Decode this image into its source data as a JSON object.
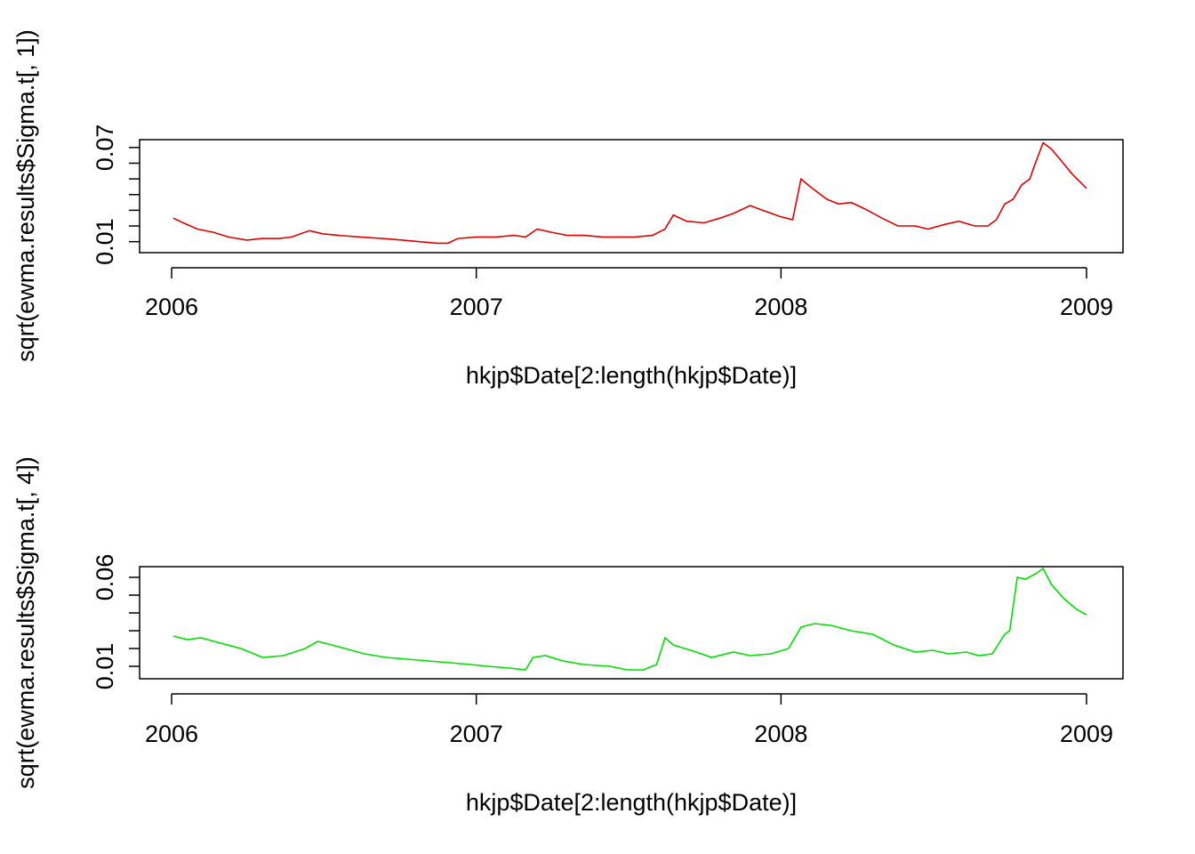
{
  "chart_data": [
    {
      "type": "line",
      "title": "",
      "xlabel": "hkjp$Date[2:length(hkjp$Date)]",
      "ylabel": "sqrt(ewma.results$Sigma.t[, 1])",
      "xlim": [
        "2006-01-01",
        "2009-01-01"
      ],
      "ylim": [
        0.003,
        0.075
      ],
      "x_ticks": [
        "2006",
        "2007",
        "2008",
        "2009"
      ],
      "y_ticks": [
        0.01,
        0.02,
        0.03,
        0.04,
        0.05,
        0.06,
        0.07
      ],
      "y_tick_labels": [
        "0.01",
        "",
        "",
        "",
        "",
        "",
        "0.07"
      ],
      "grid": false,
      "color": "#e00000",
      "series": [
        {
          "x": [
            "2006-01-03",
            "2006-01-15",
            "2006-02-01",
            "2006-02-20",
            "2006-03-10",
            "2006-04-01",
            "2006-04-20",
            "2006-05-10",
            "2006-05-25",
            "2006-06-15",
            "2006-07-01",
            "2006-07-20",
            "2006-08-15",
            "2006-09-10",
            "2006-10-05",
            "2006-10-25",
            "2006-11-15",
            "2006-11-28",
            "2006-12-10",
            "2007-01-01",
            "2007-01-25",
            "2007-02-15",
            "2007-03-01",
            "2007-03-15",
            "2007-04-01",
            "2007-04-20",
            "2007-05-10",
            "2007-06-01",
            "2007-06-20",
            "2007-07-10",
            "2007-07-31",
            "2007-08-15",
            "2007-08-25",
            "2007-09-10",
            "2007-10-01",
            "2007-10-20",
            "2007-11-05",
            "2007-11-25",
            "2007-12-10",
            "2007-12-31",
            "2008-01-15",
            "2008-01-25",
            "2008-02-05",
            "2008-02-25",
            "2008-03-10",
            "2008-03-25",
            "2008-04-10",
            "2008-05-01",
            "2008-05-20",
            "2008-06-10",
            "2008-06-25",
            "2008-07-15",
            "2008-08-01",
            "2008-08-20",
            "2008-09-05",
            "2008-09-15",
            "2008-09-25",
            "2008-10-05",
            "2008-10-15",
            "2008-10-25",
            "2008-10-31",
            "2008-11-10",
            "2008-11-20",
            "2008-12-01",
            "2008-12-15",
            "2009-01-01"
          ],
          "values": [
            0.025,
            0.022,
            0.018,
            0.016,
            0.013,
            0.011,
            0.012,
            0.012,
            0.013,
            0.017,
            0.015,
            0.014,
            0.013,
            0.012,
            0.011,
            0.01,
            0.009,
            0.009,
            0.012,
            0.013,
            0.013,
            0.014,
            0.013,
            0.018,
            0.016,
            0.014,
            0.014,
            0.013,
            0.013,
            0.013,
            0.014,
            0.018,
            0.027,
            0.023,
            0.022,
            0.025,
            0.028,
            0.033,
            0.03,
            0.026,
            0.024,
            0.05,
            0.045,
            0.037,
            0.034,
            0.035,
            0.031,
            0.025,
            0.02,
            0.02,
            0.018,
            0.021,
            0.023,
            0.02,
            0.02,
            0.024,
            0.034,
            0.037,
            0.046,
            0.05,
            0.059,
            0.073,
            0.069,
            0.062,
            0.053,
            0.044
          ]
        }
      ]
    },
    {
      "type": "line",
      "title": "",
      "xlabel": "hkjp$Date[2:length(hkjp$Date)]",
      "ylabel": "sqrt(ewma.results$Sigma.t[, 4])",
      "xlim": [
        "2006-01-01",
        "2009-01-01"
      ],
      "ylim": [
        0.003,
        0.066
      ],
      "x_ticks": [
        "2006",
        "2007",
        "2008",
        "2009"
      ],
      "y_ticks": [
        0.01,
        0.02,
        0.03,
        0.04,
        0.05,
        0.06
      ],
      "y_tick_labels": [
        "0.01",
        "",
        "",
        "",
        "",
        "0.06"
      ],
      "grid": false,
      "color": "#00e000",
      "series": [
        {
          "x": [
            "2006-01-03",
            "2006-01-20",
            "2006-02-05",
            "2006-03-01",
            "2006-03-25",
            "2006-04-20",
            "2006-05-15",
            "2006-06-10",
            "2006-06-25",
            "2006-07-20",
            "2006-08-20",
            "2006-09-15",
            "2006-10-10",
            "2006-11-05",
            "2006-12-01",
            "2006-12-25",
            "2007-01-15",
            "2007-02-10",
            "2007-03-01",
            "2007-03-10",
            "2007-03-25",
            "2007-04-15",
            "2007-05-10",
            "2007-06-10",
            "2007-07-01",
            "2007-07-20",
            "2007-08-05",
            "2007-08-15",
            "2007-08-25",
            "2007-09-15",
            "2007-10-10",
            "2007-11-05",
            "2007-11-25",
            "2007-12-20",
            "2008-01-10",
            "2008-01-25",
            "2008-02-10",
            "2008-03-01",
            "2008-03-25",
            "2008-04-20",
            "2008-05-15",
            "2008-06-10",
            "2008-07-01",
            "2008-07-20",
            "2008-08-10",
            "2008-08-25",
            "2008-09-10",
            "2008-09-25",
            "2008-10-01",
            "2008-10-10",
            "2008-10-20",
            "2008-11-01",
            "2008-11-10",
            "2008-11-20",
            "2008-12-05",
            "2008-12-20",
            "2009-01-01"
          ],
          "values": [
            0.027,
            0.025,
            0.026,
            0.023,
            0.02,
            0.015,
            0.016,
            0.02,
            0.024,
            0.021,
            0.017,
            0.015,
            0.014,
            0.013,
            0.012,
            0.011,
            0.01,
            0.009,
            0.008,
            0.015,
            0.016,
            0.013,
            0.011,
            0.01,
            0.008,
            0.008,
            0.011,
            0.026,
            0.022,
            0.019,
            0.015,
            0.018,
            0.016,
            0.017,
            0.02,
            0.032,
            0.034,
            0.033,
            0.03,
            0.028,
            0.022,
            0.018,
            0.019,
            0.017,
            0.018,
            0.016,
            0.017,
            0.028,
            0.03,
            0.06,
            0.059,
            0.062,
            0.065,
            0.056,
            0.048,
            0.042,
            0.039
          ]
        }
      ]
    }
  ]
}
